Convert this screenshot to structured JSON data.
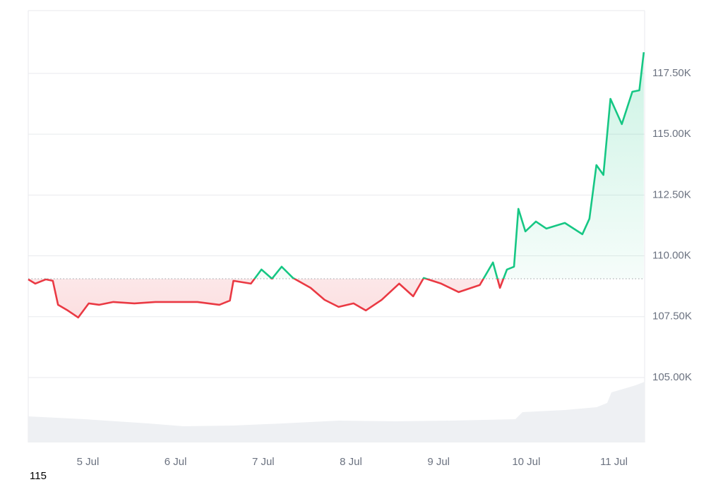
{
  "chart_data": {
    "type": "line",
    "x": [
      4.32,
      4.4,
      4.52,
      4.6,
      4.66,
      4.77,
      4.89,
      5.01,
      5.13,
      5.29,
      5.53,
      5.77,
      6.01,
      6.25,
      6.5,
      6.62,
      6.66,
      6.86,
      6.98,
      7.1,
      7.21,
      7.34,
      7.54,
      7.7,
      7.86,
      8.03,
      8.17,
      8.35,
      8.55,
      8.71,
      8.83,
      9.03,
      9.23,
      9.47,
      9.62,
      9.7,
      9.78,
      9.86,
      9.91,
      9.99,
      10.11,
      10.23,
      10.44,
      10.64,
      10.72,
      10.8,
      10.88,
      10.96,
      11.09,
      11.21,
      11.29,
      11.34
    ],
    "series": [
      {
        "values": [
          109032,
          108858,
          109032,
          108974,
          107988,
          107756,
          107466,
          108046,
          107988,
          108104,
          108046,
          108104,
          108104,
          108104,
          107988,
          108162,
          108974,
          108858,
          109438,
          109061,
          109554,
          109090,
          108684,
          108191,
          107901,
          108046,
          107756,
          108191,
          108858,
          108336,
          109090,
          108858,
          108510,
          108800,
          109728,
          108684,
          109438,
          109554,
          111932,
          111004,
          111410,
          111120,
          111352,
          110888,
          111526,
          113730,
          113324,
          116456,
          115412,
          116746,
          116804,
          118370
        ]
      }
    ],
    "baseline": 109060,
    "up_color": "#16c784",
    "down_color": "#ea3943",
    "xlim": [
      4.32,
      11.35
    ],
    "xticks": [
      {
        "value": 5,
        "label": "5 Jul"
      },
      {
        "value": 6,
        "label": "6 Jul"
      },
      {
        "value": 7,
        "label": "7 Jul"
      },
      {
        "value": 8,
        "label": "8 Jul"
      },
      {
        "value": 9,
        "label": "9 Jul"
      },
      {
        "value": 10,
        "label": "10 Jul"
      },
      {
        "value": 11,
        "label": "11 Jul"
      }
    ],
    "ylim": [
      102330,
      120080
    ],
    "yticks": [
      {
        "value": 105000,
        "label": "105.00K"
      },
      {
        "value": 107500,
        "label": "107.50K"
      },
      {
        "value": 110000,
        "label": "110.00K"
      },
      {
        "value": 112500,
        "label": "112.50K"
      },
      {
        "value": 115000,
        "label": "115.00K"
      },
      {
        "value": 117500,
        "label": "117.50K"
      }
    ],
    "grid": true,
    "footer_text": "115"
  }
}
